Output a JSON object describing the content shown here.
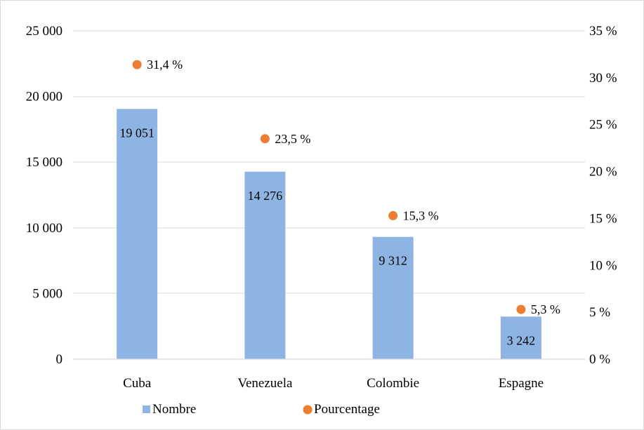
{
  "chart_data": {
    "type": "bar",
    "categories": [
      "Cuba",
      "Venezuela",
      "Colombie",
      "Espagne"
    ],
    "series": [
      {
        "name": "Nombre",
        "axis": "left",
        "values": [
          19051,
          14276,
          9312,
          3242
        ],
        "labels": [
          "19 051",
          "14 276",
          "9 312",
          "3 242"
        ],
        "color": "#8eb4e3"
      },
      {
        "name": "Pourcentage",
        "axis": "right",
        "type": "scatter",
        "values": [
          31.4,
          23.5,
          15.3,
          5.3
        ],
        "labels": [
          "31,4 %",
          "23,5 %",
          "15,3 %",
          "5,3 %"
        ],
        "color": "#ed7d31"
      }
    ],
    "left_axis": {
      "ylim": [
        0,
        25000
      ],
      "ticks": [
        0,
        5000,
        10000,
        15000,
        20000,
        25000
      ],
      "tick_labels": [
        "0",
        "5 000",
        "10 000",
        "15 000",
        "20 000",
        "25 000"
      ]
    },
    "right_axis": {
      "ylim": [
        0,
        35
      ],
      "ticks": [
        0,
        5,
        10,
        15,
        20,
        25,
        30,
        35
      ],
      "tick_labels": [
        "0 %",
        "5 %",
        "10 %",
        "15 %",
        "20 %",
        "25 %",
        "30 %",
        "35 %"
      ]
    },
    "grid": true,
    "legend": "bottom"
  }
}
